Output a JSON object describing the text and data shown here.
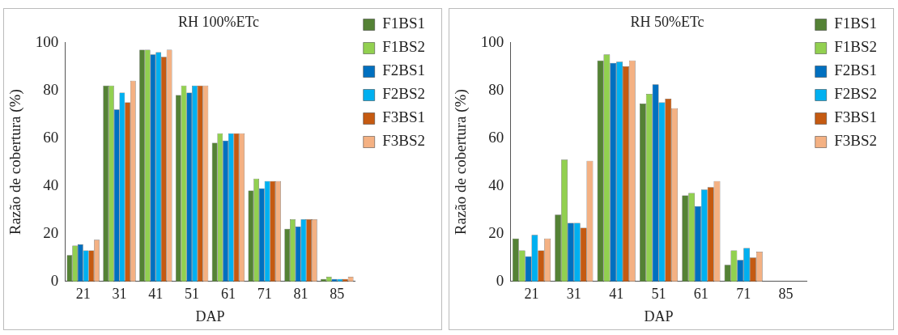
{
  "chart_data": [
    {
      "type": "bar",
      "title": "RH 100%ETc",
      "xlabel": "DAP",
      "ylabel": "Razão de cobertura (%)",
      "categories": [
        "21",
        "31",
        "41",
        "51",
        "61",
        "71",
        "81",
        "85"
      ],
      "ylim": [
        0,
        100
      ],
      "yticks": [
        0,
        20,
        40,
        60,
        80,
        100
      ],
      "legend": "right",
      "grid": false,
      "series": [
        {
          "name": "F1BS1",
          "color": "#548235",
          "values": [
            11,
            82,
            97,
            78,
            58,
            38,
            22,
            1
          ]
        },
        {
          "name": "F1BS2",
          "color": "#92d050",
          "values": [
            15,
            82,
            97,
            82,
            62,
            43,
            26,
            2
          ]
        },
        {
          "name": "F2BS1",
          "color": "#0070c0",
          "values": [
            15.5,
            72,
            95,
            79,
            59,
            39,
            23,
            1
          ]
        },
        {
          "name": "F2BS2",
          "color": "#00b0f0",
          "values": [
            13,
            79,
            96,
            82,
            62,
            42,
            26,
            1
          ]
        },
        {
          "name": "F3BS1",
          "color": "#c55a11",
          "values": [
            13,
            75,
            94,
            82,
            62,
            42,
            26,
            1
          ]
        },
        {
          "name": "F3BS2",
          "color": "#f4b183",
          "values": [
            17.5,
            84,
            97,
            82,
            62,
            42,
            26,
            2
          ]
        }
      ]
    },
    {
      "type": "bar",
      "title": "RH 50%ETc",
      "xlabel": "DAP",
      "ylabel": "Razão de cobertura (%)",
      "categories": [
        "21",
        "31",
        "41",
        "51",
        "61",
        "71",
        "85"
      ],
      "ylim": [
        0,
        100
      ],
      "yticks": [
        0,
        20,
        40,
        60,
        80,
        100
      ],
      "legend": "right",
      "grid": false,
      "series": [
        {
          "name": "F1BS1",
          "color": "#548235",
          "values": [
            18,
            28,
            92.5,
            74.5,
            36,
            7,
            null
          ]
        },
        {
          "name": "F1BS2",
          "color": "#92d050",
          "values": [
            13,
            51,
            95,
            78.5,
            37,
            13,
            null
          ]
        },
        {
          "name": "F2BS1",
          "color": "#0070c0",
          "values": [
            10.5,
            24.5,
            91.5,
            82.5,
            31.5,
            9,
            null
          ]
        },
        {
          "name": "F2BS2",
          "color": "#00b0f0",
          "values": [
            19.5,
            24.5,
            92,
            75,
            38.5,
            14,
            null
          ]
        },
        {
          "name": "F3BS1",
          "color": "#c55a11",
          "values": [
            13,
            22.5,
            90,
            76.5,
            39.5,
            10,
            null
          ]
        },
        {
          "name": "F3BS2",
          "color": "#f4b183",
          "values": [
            18,
            50.5,
            92.5,
            72.5,
            42,
            12.5,
            null
          ]
        }
      ]
    }
  ]
}
